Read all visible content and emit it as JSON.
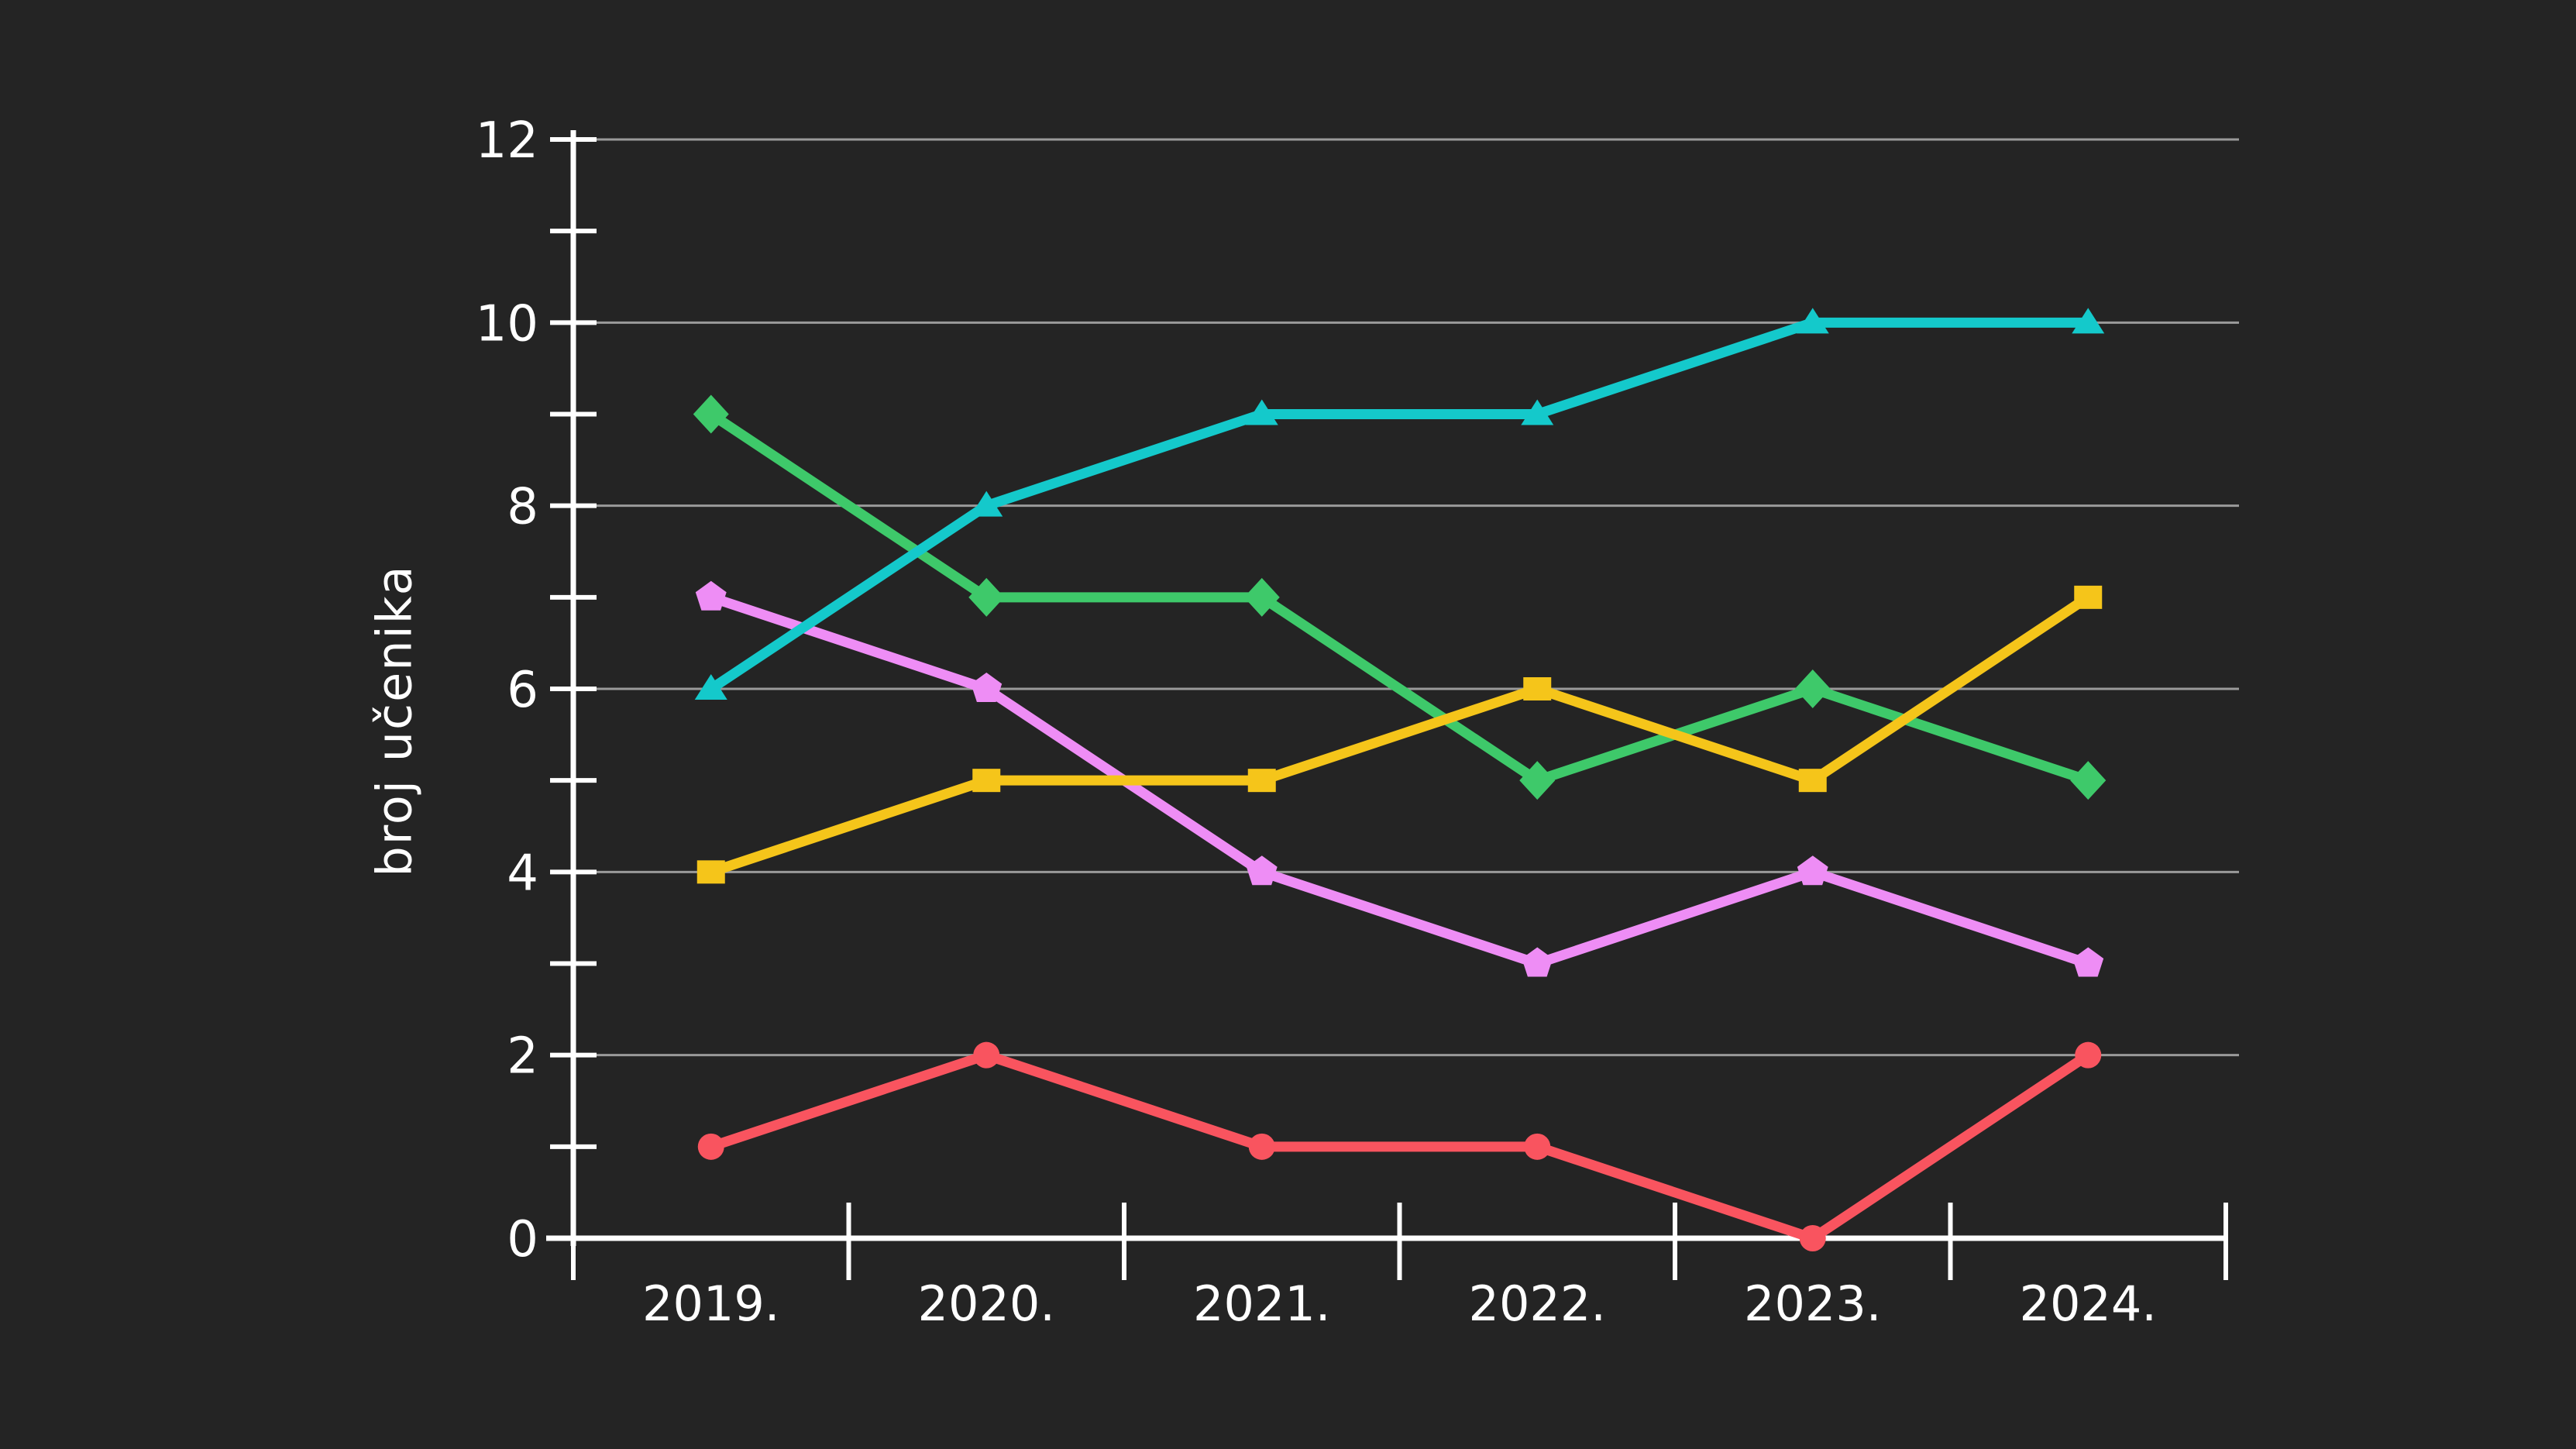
{
  "page": {
    "background": "#242424"
  },
  "chart": {
    "axis_color": "#ffffff",
    "grid_color": "#9a9a9a",
    "text_color": "#ffffff"
  },
  "chart_data": {
    "type": "line",
    "title": "",
    "xlabel": "",
    "ylabel": "broj učenika",
    "categories": [
      "2019.",
      "2020.",
      "2021.",
      "2022.",
      "2023.",
      "2024."
    ],
    "yticks": [
      0,
      2,
      4,
      6,
      8,
      10,
      12
    ],
    "minor_yticks_every": 1,
    "ylim": [
      0,
      12
    ],
    "grid": "horizontal-gray-lines-at-even-values",
    "legend": "none",
    "series": [
      {
        "name": "green",
        "marker": "diamond",
        "color": "#3ec96a",
        "values": [
          9,
          7,
          7,
          5,
          6,
          5
        ]
      },
      {
        "name": "purple",
        "marker": "pentagon",
        "color": "#ee8df5",
        "values": [
          7,
          6,
          4,
          3,
          4,
          3
        ]
      },
      {
        "name": "yellow",
        "marker": "square",
        "color": "#f5c51a",
        "values": [
          4,
          5,
          5,
          6,
          5,
          7
        ]
      },
      {
        "name": "teal",
        "marker": "triangle",
        "color": "#14c9cb",
        "values": [
          6,
          8,
          9,
          9,
          10,
          10
        ]
      },
      {
        "name": "red",
        "marker": "circle",
        "color": "#f9545f",
        "values": [
          1,
          2,
          1,
          1,
          0,
          2
        ]
      }
    ]
  }
}
